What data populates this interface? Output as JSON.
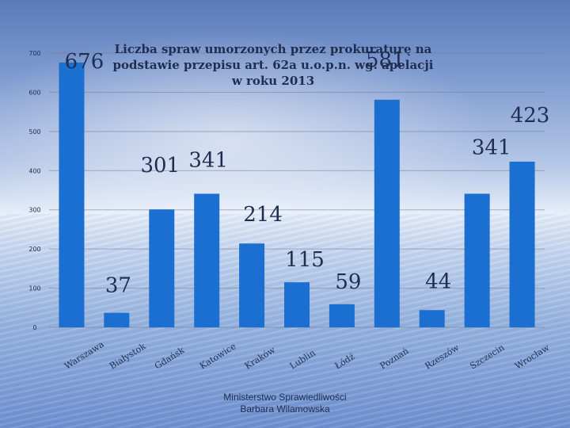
{
  "chart_data": {
    "type": "bar",
    "title": "Liczba spraw umorzonych przez prokuraturę na\npodstawie przepisu art. 62a u.o.p.n. wg. apelacji\nw roku 2013",
    "categories": [
      "Warszawa",
      "Białystok",
      "Gdańsk",
      "Katowice",
      "Kraków",
      "Lublin",
      "Łódź",
      "Poznań",
      "Rzeszów",
      "Szczecin",
      "Wrocław"
    ],
    "values": [
      676,
      37,
      301,
      341,
      214,
      115,
      59,
      581,
      44,
      341,
      423
    ],
    "value_labels": [
      "676",
      "37",
      "301",
      "341",
      "214",
      "115",
      "59",
      "581",
      "44",
      "341",
      "423"
    ],
    "y_ticks": [
      0,
      100,
      200,
      300,
      400,
      500,
      600,
      700
    ],
    "y_tick_labels": [
      "0",
      "100",
      "200",
      "300",
      "400",
      "500",
      "600",
      "700"
    ],
    "ylim": [
      0,
      700
    ],
    "grid": true,
    "xlabel": "",
    "ylabel": "",
    "bar_color": "#1a6fd0"
  },
  "footer": {
    "line1": "Ministerstwo Sprawiedliwości",
    "line2": "Barbara Wilamowska"
  }
}
